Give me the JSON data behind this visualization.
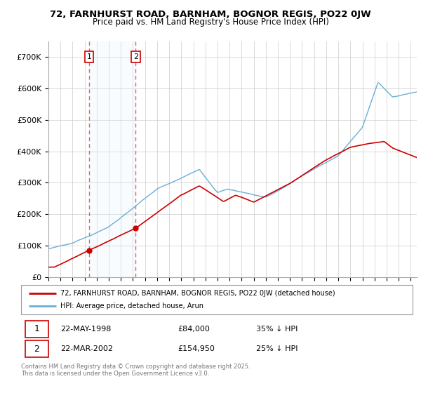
{
  "title": "72, FARNHURST ROAD, BARNHAM, BOGNOR REGIS, PO22 0JW",
  "subtitle": "Price paid vs. HM Land Registry's House Price Index (HPI)",
  "legend_line1": "72, FARNHURST ROAD, BARNHAM, BOGNOR REGIS, PO22 0JW (detached house)",
  "legend_line2": "HPI: Average price, detached house, Arun",
  "sale1_date": "22-MAY-1998",
  "sale1_price": "£84,000",
  "sale1_hpi": "35% ↓ HPI",
  "sale2_date": "22-MAR-2002",
  "sale2_price": "£154,950",
  "sale2_hpi": "25% ↓ HPI",
  "footer": "Contains HM Land Registry data © Crown copyright and database right 2025.\nThis data is licensed under the Open Government Licence v3.0.",
  "sale1_x": 1998.38,
  "sale1_y": 84000,
  "sale2_x": 2002.22,
  "sale2_y": 154950,
  "hpi_color": "#6baed6",
  "price_color": "#cc0000",
  "vline_color": "#e06666",
  "shade_color": "#ddeeff",
  "marker_color": "#cc0000",
  "background_color": "#ffffff",
  "grid_color": "#cccccc",
  "ylim": [
    0,
    750000
  ],
  "xlim_start": 1995,
  "xlim_end": 2025.5
}
